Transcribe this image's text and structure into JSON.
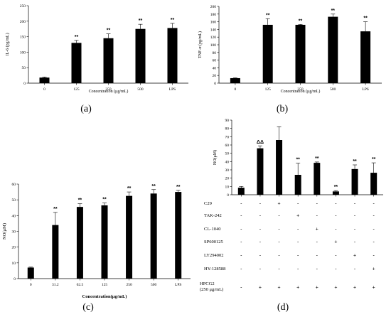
{
  "chart_data": [
    {
      "id": "a",
      "panel_label": "(a)",
      "type": "bar",
      "ylabel": "IL-6 (pg/mL)",
      "xlabel": "Concentration (μg/mL)",
      "categories": [
        "0",
        "125",
        "250",
        "500",
        "LPS"
      ],
      "values": [
        18,
        130,
        145,
        175,
        178
      ],
      "errors": [
        2,
        8,
        14,
        15,
        15
      ],
      "significance": [
        "",
        "**",
        "**",
        "**",
        "**"
      ],
      "ylim": [
        0,
        250
      ],
      "yticks": [
        "0",
        "50",
        "100",
        "150",
        "200",
        "250"
      ]
    },
    {
      "id": "b",
      "panel_label": "(b)",
      "type": "bar",
      "ylabel": "TNF-α (pg/mL)",
      "xlabel": "Concentration (μg/mL)",
      "categories": [
        "0",
        "125",
        "250",
        "500",
        "LPS"
      ],
      "values": [
        13,
        152,
        152,
        173,
        135
      ],
      "errors": [
        1,
        16,
        1,
        7,
        25
      ],
      "significance": [
        "",
        "**",
        "**",
        "**",
        "**"
      ],
      "ylim": [
        0,
        200
      ],
      "yticks": [
        "0",
        "20",
        "40",
        "60",
        "80",
        "100",
        "120",
        "140",
        "160",
        "180",
        "200"
      ]
    },
    {
      "id": "c",
      "panel_label": "(c)",
      "type": "bar",
      "ylabel": "NO(μM)",
      "xlabel": "Concentration(μg/mL)",
      "categories": [
        "0",
        "31.2",
        "62.5",
        "125",
        "250",
        "500",
        "LPS"
      ],
      "values": [
        7,
        34,
        45.5,
        46.5,
        52.5,
        54,
        55
      ],
      "errors": [
        0.3,
        8,
        2,
        1.5,
        2.5,
        2.5,
        1
      ],
      "significance": [
        "",
        "**",
        "**",
        "**",
        "**",
        "**",
        "**"
      ],
      "ylim": [
        0,
        60
      ],
      "yticks": [
        "0",
        "10",
        "20",
        "30",
        "40",
        "50",
        "60"
      ]
    },
    {
      "id": "d",
      "panel_label": "(d)",
      "type": "bar",
      "ylabel": "NO(μM)",
      "values": [
        8.5,
        56,
        66,
        24,
        38.5,
        4,
        31,
        26.5
      ],
      "errors": [
        1.5,
        3,
        16,
        14,
        1,
        1,
        5,
        12
      ],
      "significance": [
        "",
        "ΔΔ",
        "",
        "**",
        "**",
        "**",
        "**",
        "**"
      ],
      "ylim": [
        0,
        90
      ],
      "yticks": [
        "0",
        "10",
        "20",
        "30",
        "40",
        "50",
        "60",
        "70",
        "80",
        "90"
      ],
      "treatment_table": [
        {
          "label": "C29",
          "signs": [
            "-",
            "-",
            "+",
            "-",
            "-",
            "-",
            "-",
            "-"
          ]
        },
        {
          "label": "TAK-242",
          "signs": [
            "-",
            "-",
            "-",
            "+",
            "-",
            "-",
            "-",
            "-"
          ]
        },
        {
          "label": "CL-1040",
          "signs": [
            "-",
            "-",
            "-",
            "-",
            "+",
            "-",
            "-",
            "-"
          ]
        },
        {
          "label": "SP600125",
          "signs": [
            "-",
            "-",
            "-",
            "-",
            "-",
            "+",
            "-",
            "-"
          ]
        },
        {
          "label": "LY294002",
          "signs": [
            "-",
            "-",
            "-",
            "-",
            "-",
            "-",
            "+",
            "-"
          ]
        },
        {
          "label": "HY-128588",
          "signs": [
            "-",
            "-",
            "-",
            "-",
            "-",
            "-",
            "-",
            "+"
          ]
        },
        {
          "label": "HPCG2",
          "label_line2": "(250 μg/mL)",
          "signs": [
            "-",
            "+",
            "+",
            "+",
            "+",
            "+",
            "+",
            "+"
          ]
        }
      ]
    }
  ]
}
